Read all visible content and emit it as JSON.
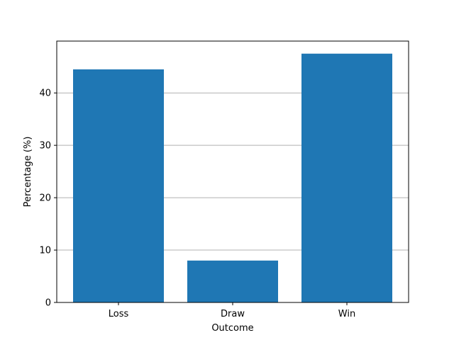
{
  "chart_data": {
    "type": "bar",
    "categories": [
      "Loss",
      "Draw",
      "Win"
    ],
    "values": [
      44.5,
      8.0,
      47.5
    ],
    "xlabel": "Outcome",
    "ylabel": "Percentage (%)",
    "ylim": [
      0,
      49.9
    ],
    "yticks": [
      0,
      10,
      20,
      30,
      40
    ],
    "grid": "y-major",
    "bar_color": "#1f77b4",
    "grid_color": "#b0b0b0"
  }
}
